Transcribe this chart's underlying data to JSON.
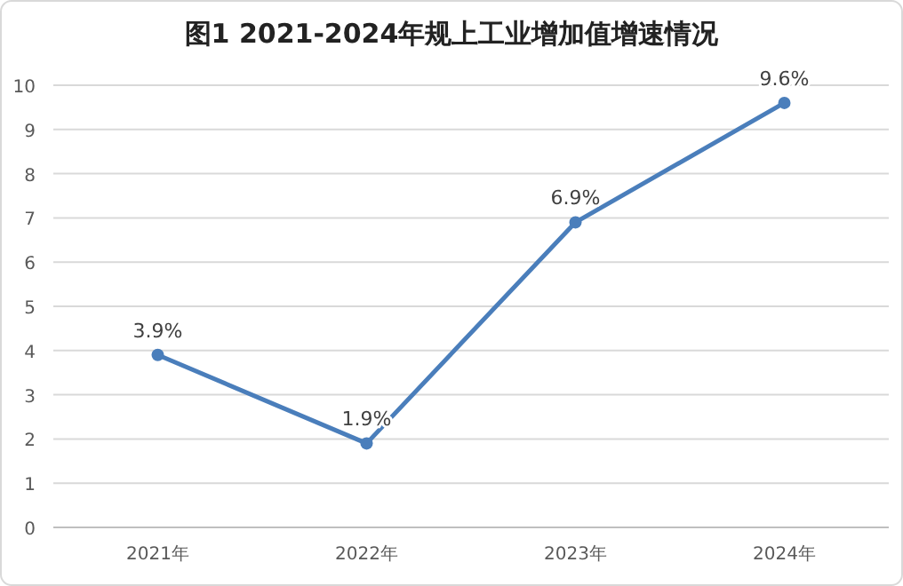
{
  "chart_data": {
    "type": "line",
    "title": "图1 2021-2024年规上工业增加值增速情况",
    "categories": [
      "2021年",
      "2022年",
      "2023年",
      "2024年"
    ],
    "series": [
      {
        "color": "#4a7ebb",
        "values": [
          3.9,
          1.9,
          6.9,
          9.6
        ],
        "value_labels": [
          "3.9%",
          "1.9%",
          "6.9%",
          "9.6%"
        ]
      }
    ],
    "ylim": [
      0,
      10
    ],
    "yticks": [
      0,
      1,
      2,
      3,
      4,
      5,
      6,
      7,
      8,
      9,
      10
    ],
    "grid": "y",
    "marker": "circle",
    "line_style": "solid"
  }
}
